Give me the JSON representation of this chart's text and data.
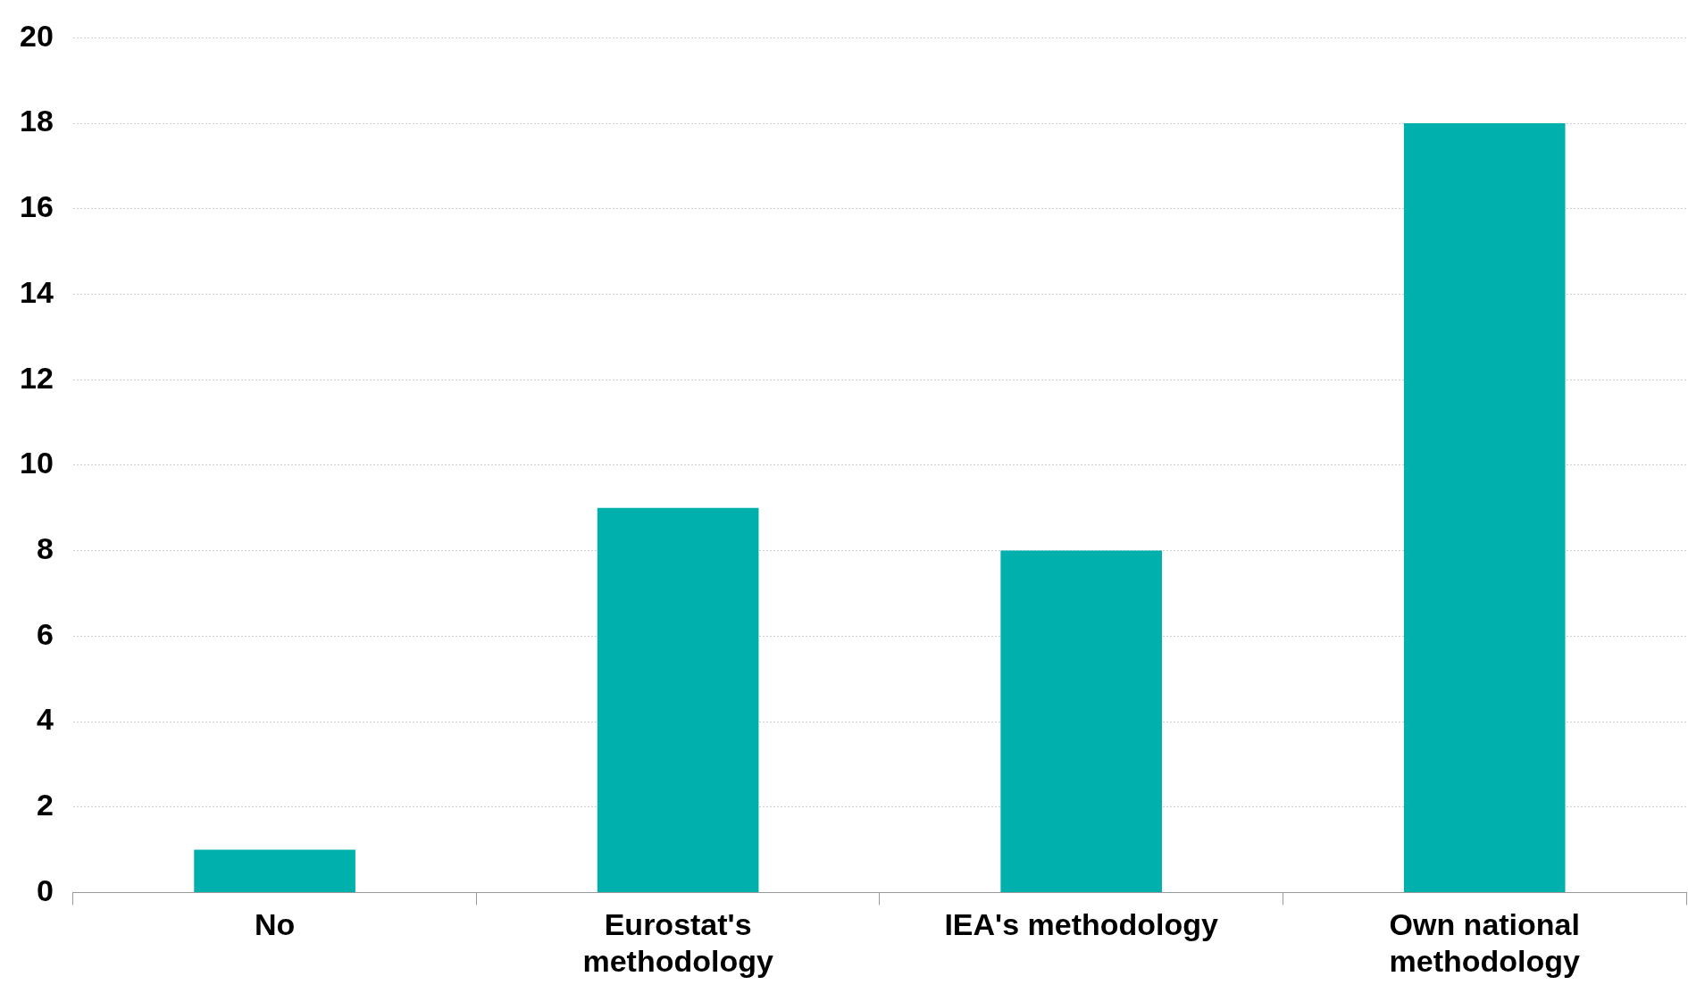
{
  "chart_data": {
    "type": "bar",
    "categories": [
      "No",
      "Eurostat's\nmethodology",
      "IEA's methodology",
      "Own national\nmethodology"
    ],
    "values": [
      1,
      9,
      8,
      18
    ],
    "color": "#00b0ad",
    "ylim": [
      0,
      20
    ],
    "yticks": [
      0,
      2,
      4,
      6,
      8,
      10,
      12,
      14,
      16,
      18,
      20
    ],
    "grid": "y",
    "legend": false
  }
}
